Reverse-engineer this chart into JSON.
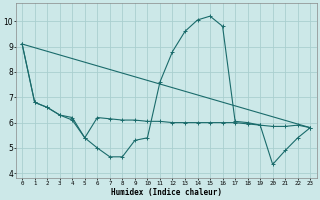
{
  "xlabel": "Humidex (Indice chaleur)",
  "bg_color": "#cce8e8",
  "grid_color": "#aacfcf",
  "line_color": "#1a6b6b",
  "xlim": [
    -0.5,
    23.5
  ],
  "ylim": [
    3.8,
    10.7
  ],
  "xticks": [
    0,
    1,
    2,
    3,
    4,
    5,
    6,
    7,
    8,
    9,
    10,
    11,
    12,
    13,
    14,
    15,
    16,
    17,
    18,
    19,
    20,
    21,
    22,
    23
  ],
  "yticks": [
    4,
    5,
    6,
    7,
    8,
    9,
    10
  ],
  "line_peak": {
    "x": [
      0,
      1,
      2,
      3,
      4,
      5,
      6,
      7,
      8,
      9,
      10,
      11,
      12,
      13,
      14,
      15,
      16,
      17,
      18,
      19,
      20,
      21,
      22,
      23
    ],
    "y": [
      9.1,
      6.8,
      6.6,
      6.3,
      6.1,
      5.4,
      5.0,
      4.65,
      4.65,
      5.3,
      5.4,
      7.6,
      8.8,
      9.6,
      10.05,
      10.2,
      9.8,
      6.05,
      6.0,
      5.9,
      4.35,
      4.9,
      5.4,
      5.8
    ]
  },
  "line_flat": {
    "x": [
      0,
      1,
      2,
      3,
      4,
      5,
      6,
      7,
      8,
      9,
      10,
      11,
      12,
      13,
      14,
      15,
      16,
      17,
      18,
      19,
      20,
      21,
      22,
      23
    ],
    "y": [
      9.1,
      6.8,
      6.6,
      6.3,
      6.2,
      5.4,
      6.2,
      6.15,
      6.1,
      6.1,
      6.05,
      6.05,
      6.0,
      6.0,
      6.0,
      6.0,
      6.0,
      6.0,
      5.95,
      5.9,
      5.85,
      5.85,
      5.9,
      5.8
    ]
  },
  "line_diag": {
    "x": [
      0,
      23
    ],
    "y": [
      9.1,
      5.8
    ]
  }
}
